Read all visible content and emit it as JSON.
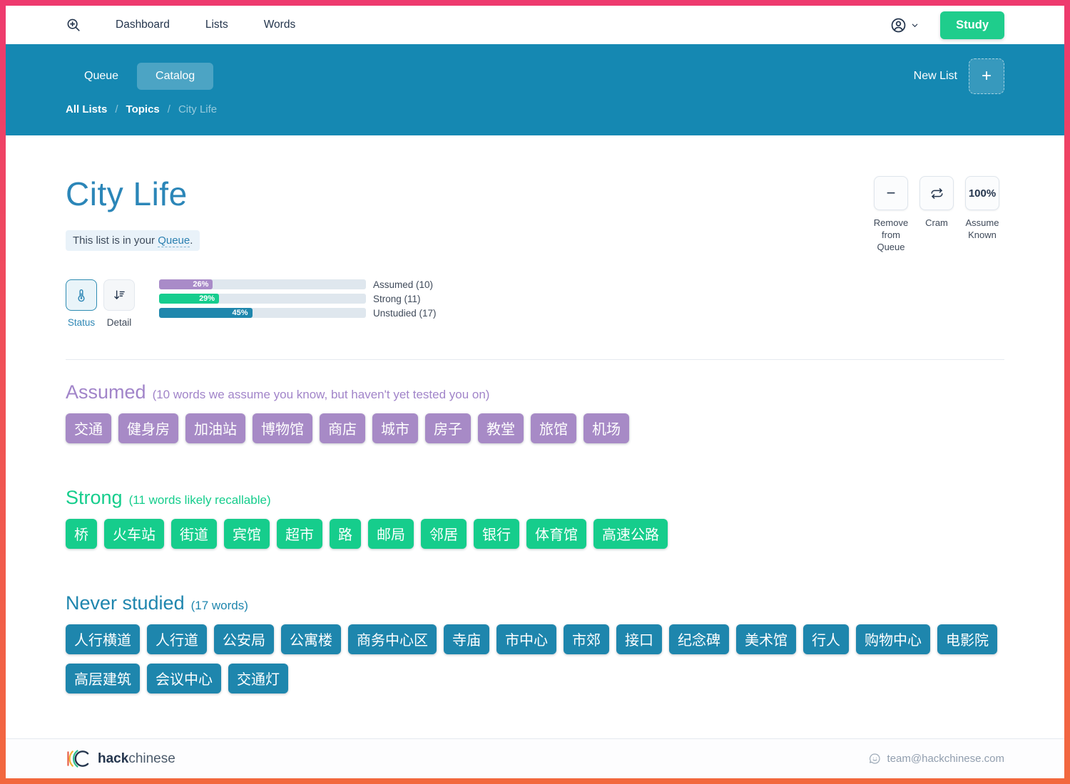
{
  "topnav": {
    "nav_items": [
      "Dashboard",
      "Lists",
      "Words"
    ],
    "study_label": "Study"
  },
  "subnav": {
    "queue_tab": "Queue",
    "catalog_tab": "Catalog",
    "new_list_label": "New List",
    "plus_glyph": "+",
    "breadcrumb": {
      "all_lists": "All Lists",
      "topics": "Topics",
      "current": "City Life",
      "separator": "/"
    }
  },
  "page_header": {
    "title": "City Life",
    "queue_notice_prefix": "This list is in your ",
    "queue_link": "Queue",
    "queue_notice_suffix": "."
  },
  "actions": {
    "remove": {
      "glyph": "−",
      "label": "Remove from Queue"
    },
    "cram": {
      "label": "Cram"
    },
    "assume": {
      "glyph": "100%",
      "label": "Assume Known"
    }
  },
  "view_toggle": {
    "status_label": "Status",
    "detail_label": "Detail"
  },
  "progress": [
    {
      "label": "Assumed (10)",
      "percent": 26,
      "percent_label": "26%",
      "color": "#a98bc8"
    },
    {
      "label": "Strong (11)",
      "percent": 29,
      "percent_label": "29%",
      "color": "#16cd8e"
    },
    {
      "label": "Unstudied (17)",
      "percent": 45,
      "percent_label": "45%",
      "color": "#1f87ad"
    }
  ],
  "sections": [
    {
      "title": "Assumed",
      "subtitle": "(10 words we assume you know, but haven't yet tested you on)",
      "chip_color": "#a78ac6",
      "words": [
        "交通",
        "健身房",
        "加油站",
        "博物馆",
        "商店",
        "城市",
        "房子",
        "教堂",
        "旅馆",
        "机场"
      ]
    },
    {
      "title": "Strong",
      "subtitle": "(11 words likely recallable)",
      "chip_color": "#16cd8c",
      "words": [
        "桥",
        "火车站",
        "街道",
        "宾馆",
        "超市",
        "路",
        "邮局",
        "邻居",
        "银行",
        "体育馆",
        "高速公路"
      ]
    },
    {
      "title": "Never studied",
      "subtitle": "(17 words)",
      "chip_color": "#1e86ad",
      "words": [
        "人行横道",
        "人行道",
        "公安局",
        "公寓楼",
        "商务中心区",
        "寺庙",
        "市中心",
        "市郊",
        "接口",
        "纪念碑",
        "美术馆",
        "行人",
        "购物中心",
        "电影院",
        "高层建筑",
        "会议中心",
        "交通灯"
      ]
    }
  ],
  "footer": {
    "brand_bold": "hack",
    "brand_light": "chinese",
    "email": "team@hackchinese.com"
  },
  "colors": {
    "frame_gradient_top": "#ee3a6e",
    "frame_gradient_bottom": "#f2683e",
    "subnav_teal": "#1588b2",
    "study_green": "#1fcd8c",
    "title_blue": "#2b86b8"
  }
}
